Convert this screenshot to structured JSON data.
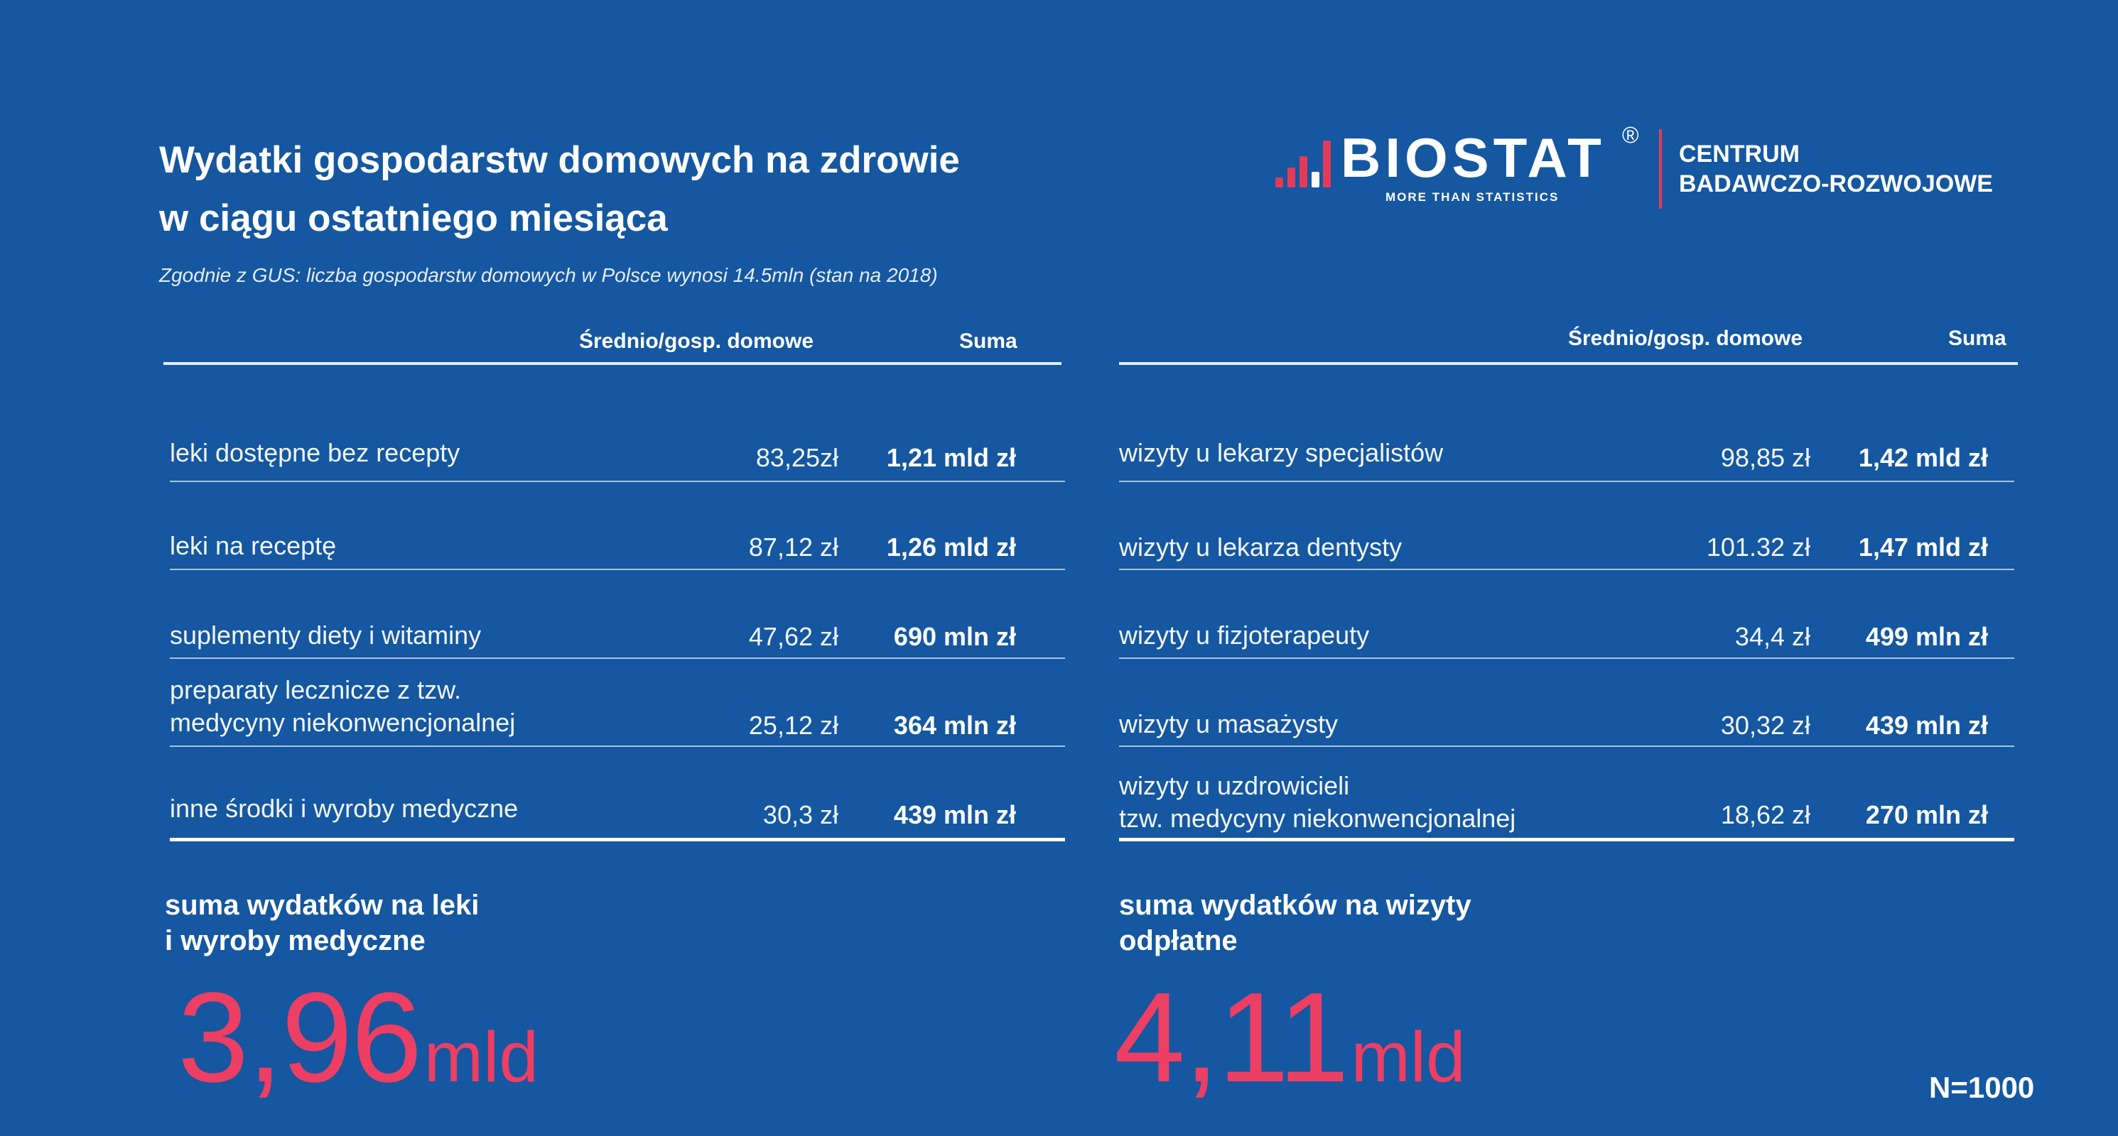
{
  "header": {
    "title_line1": "Wydatki gospodarstw domowych na zdrowie",
    "title_line2": "w ciągu ostatniego miesiąca",
    "subtitle": "Zgodnie z GUS: liczba gospodarstw domowych w Polsce wynosi 14.5mln (stan na 2018)"
  },
  "logo": {
    "word": "BIOSTAT",
    "registered": "®",
    "tagline": "MORE THAN STATISTICS",
    "center_line1": "CENTRUM",
    "center_line2": "BADAWCZO-ROZWOJOWE",
    "accent_color": "#e23b5a"
  },
  "left_table": {
    "col_avg": "Średnio/gosp. domowe",
    "col_sum": "Suma",
    "rows": [
      {
        "label": "leki dostępne bez recepty",
        "avg": "83,25zł",
        "sum": "1,21 mld zł"
      },
      {
        "label": "leki na receptę",
        "avg": "87,12 zł",
        "sum": "1,26 mld zł"
      },
      {
        "label": "suplementy diety i witaminy",
        "avg": "47,62 zł",
        "sum": "690 mln zł"
      },
      {
        "label_line1": "preparaty lecznicze z tzw.",
        "label_line2": "medycyny niekonwencjonalnej",
        "avg": "25,12 zł",
        "sum": "364 mln zł"
      },
      {
        "label": "inne środki i wyroby medyczne",
        "avg": "30,3 zł",
        "sum": "439 mln zł"
      }
    ],
    "total_label_line1": "suma wydatków na leki",
    "total_label_line2": "i wyroby medyczne",
    "total_value": "3,96",
    "total_unit": "mld"
  },
  "right_table": {
    "col_avg": "Średnio/gosp. domowe",
    "col_sum": "Suma",
    "rows": [
      {
        "label": "wizyty u lekarzy specjalistów",
        "avg": "98,85 zł",
        "sum": "1,42 mld zł"
      },
      {
        "label": "wizyty u lekarza dentysty",
        "avg": "101.32 zł",
        "sum": "1,47 mld zł"
      },
      {
        "label": "wizyty u fizjoterapeuty",
        "avg": "34,4 zł",
        "sum": "499 mln zł"
      },
      {
        "label": "wizyty u masażysty",
        "avg": "30,32 zł",
        "sum": "439 mln zł"
      },
      {
        "label_line1": "wizyty u uzdrowicieli",
        "label_line2": "tzw. medycyny niekonwencjonalnej",
        "avg": "18,62 zł",
        "sum": "270 mln zł"
      }
    ],
    "total_label_line1": "suma wydatków na wizyty",
    "total_label_line2": "odpłatne",
    "total_value": "4,11",
    "total_unit": "mld"
  },
  "sample": "N=1000",
  "colors": {
    "background": "#1557a0",
    "accent": "#ed3e63"
  }
}
